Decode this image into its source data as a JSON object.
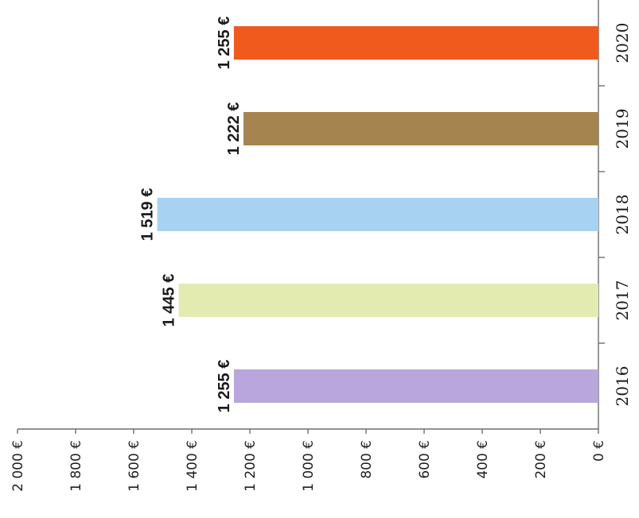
{
  "chart_data": {
    "type": "bar",
    "categories": [
      "2016",
      "2017",
      "2018",
      "2019",
      "2020"
    ],
    "values": [
      1255,
      1445,
      1519,
      1222,
      1255
    ],
    "data_labels": [
      "1 255 €",
      "1 445 €",
      "1 519 €",
      "1 222 €",
      "1 255 €"
    ],
    "colors": [
      "#b9a6dc",
      "#e4ebb1",
      "#a8d2f2",
      "#a68450",
      "#f05a1c"
    ],
    "value_ticks": [
      "0 €",
      "200 €",
      "400 €",
      "600 €",
      "800 €",
      "1 000 €",
      "1 200 €",
      "1 400 €",
      "1 600 €",
      "1 800 €",
      "2 000 €"
    ],
    "ylim": [
      0,
      2000
    ],
    "title": "",
    "xlabel": "",
    "ylabel": "",
    "grid": false,
    "legend": "none",
    "orientation": "rotated-90-clockwise"
  }
}
